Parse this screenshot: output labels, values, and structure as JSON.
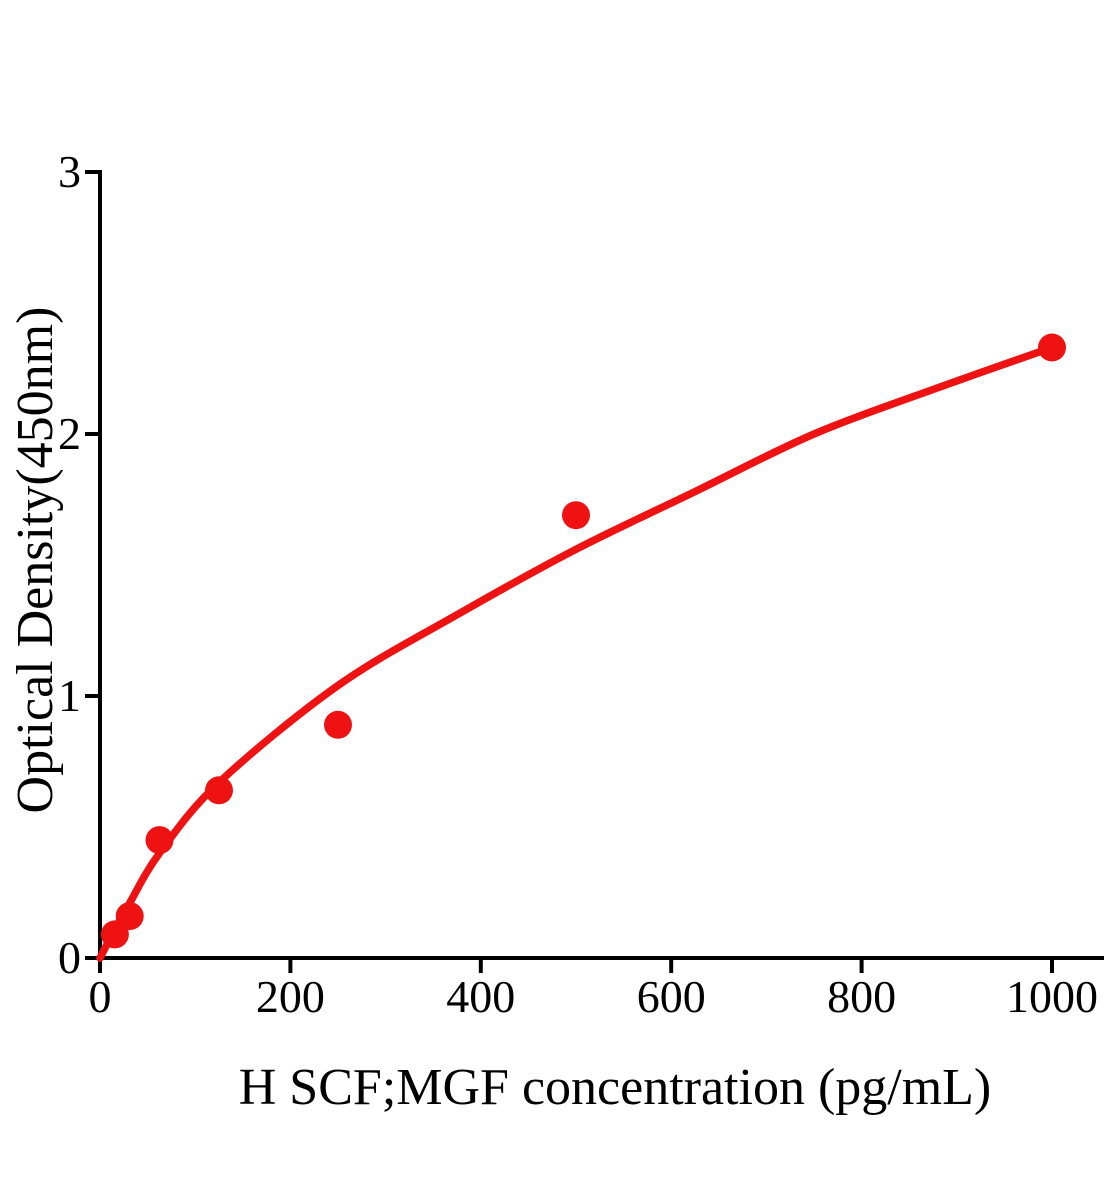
{
  "chart_data": {
    "type": "scatter",
    "title": "",
    "xlabel": "H SCF;MGF concentration (pg/mL)",
    "ylabel": "Optical Density(450nm)",
    "x_ticks": [
      0,
      200,
      400,
      600,
      800,
      1000
    ],
    "y_ticks": [
      0,
      1,
      2,
      3
    ],
    "xlim": [
      0,
      1055
    ],
    "ylim": [
      0,
      3
    ],
    "grid": false,
    "legend": "none",
    "axis_color": "#000000",
    "series": [
      {
        "name": "standard-curve-points",
        "color": "#ee1212",
        "marker": "circle",
        "points": [
          [
            15.6,
            0.09
          ],
          [
            31.2,
            0.16
          ],
          [
            62.5,
            0.45
          ],
          [
            125,
            0.64
          ],
          [
            250,
            0.89
          ],
          [
            500,
            1.69
          ],
          [
            1000,
            2.33
          ]
        ]
      }
    ],
    "fit_curve": {
      "name": "fitted-curve",
      "color": "#ee1212",
      "points": [
        [
          0,
          0.0
        ],
        [
          15.6,
          0.11
        ],
        [
          31.2,
          0.21
        ],
        [
          62.5,
          0.4
        ],
        [
          125,
          0.67
        ],
        [
          250,
          1.04
        ],
        [
          375,
          1.31
        ],
        [
          500,
          1.56
        ],
        [
          625,
          1.78
        ],
        [
          750,
          2.0
        ],
        [
          875,
          2.17
        ],
        [
          1000,
          2.33
        ]
      ]
    }
  }
}
